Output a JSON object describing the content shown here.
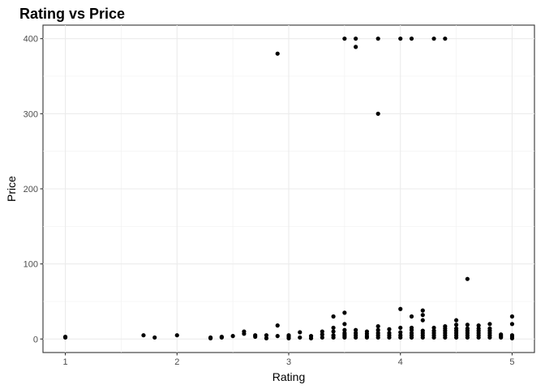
{
  "chart_data": {
    "type": "scatter",
    "title": "Rating vs Price",
    "xlabel": "Rating",
    "ylabel": "Price",
    "xlim": [
      0.8,
      5.2
    ],
    "ylim": [
      -18,
      418
    ],
    "x_ticks": [
      1,
      2,
      3,
      4,
      5
    ],
    "y_ticks": [
      0,
      100,
      200,
      300,
      400
    ],
    "grid": true,
    "legend": "none",
    "point_color": "#000000",
    "points": [
      [
        1.0,
        2
      ],
      [
        1.0,
        3
      ],
      [
        1.7,
        5
      ],
      [
        1.8,
        2
      ],
      [
        2.0,
        5
      ],
      [
        2.3,
        1
      ],
      [
        2.3,
        2
      ],
      [
        2.4,
        2
      ],
      [
        2.4,
        3
      ],
      [
        2.5,
        4
      ],
      [
        2.6,
        7
      ],
      [
        2.6,
        10
      ],
      [
        2.7,
        3
      ],
      [
        2.7,
        5
      ],
      [
        2.8,
        1
      ],
      [
        2.8,
        5
      ],
      [
        2.9,
        4
      ],
      [
        2.9,
        18
      ],
      [
        2.9,
        380
      ],
      [
        3.0,
        1
      ],
      [
        3.0,
        3
      ],
      [
        3.0,
        5
      ],
      [
        3.1,
        2
      ],
      [
        3.1,
        9
      ],
      [
        3.2,
        1
      ],
      [
        3.2,
        4
      ],
      [
        3.3,
        2
      ],
      [
        3.3,
        6
      ],
      [
        3.3,
        10
      ],
      [
        3.4,
        2
      ],
      [
        3.4,
        5
      ],
      [
        3.4,
        10
      ],
      [
        3.4,
        15
      ],
      [
        3.4,
        30
      ],
      [
        3.5,
        2
      ],
      [
        3.5,
        4
      ],
      [
        3.5,
        6
      ],
      [
        3.5,
        8
      ],
      [
        3.5,
        12
      ],
      [
        3.5,
        20
      ],
      [
        3.5,
        35
      ],
      [
        3.5,
        400
      ],
      [
        3.6,
        2
      ],
      [
        3.6,
        5
      ],
      [
        3.6,
        8
      ],
      [
        3.6,
        12
      ],
      [
        3.6,
        389
      ],
      [
        3.6,
        400
      ],
      [
        3.7,
        2
      ],
      [
        3.7,
        4
      ],
      [
        3.7,
        7
      ],
      [
        3.7,
        10
      ],
      [
        3.8,
        2
      ],
      [
        3.8,
        5
      ],
      [
        3.8,
        8
      ],
      [
        3.8,
        12
      ],
      [
        3.8,
        17
      ],
      [
        3.8,
        300
      ],
      [
        3.8,
        400
      ],
      [
        3.9,
        2
      ],
      [
        3.9,
        5
      ],
      [
        3.9,
        8
      ],
      [
        3.9,
        13
      ],
      [
        4.0,
        2
      ],
      [
        4.0,
        5
      ],
      [
        4.0,
        9
      ],
      [
        4.0,
        15
      ],
      [
        4.0,
        40
      ],
      [
        4.0,
        400
      ],
      [
        4.1,
        2
      ],
      [
        4.1,
        5
      ],
      [
        4.1,
        8
      ],
      [
        4.1,
        12
      ],
      [
        4.1,
        15
      ],
      [
        4.1,
        30
      ],
      [
        4.1,
        400
      ],
      [
        4.2,
        2
      ],
      [
        4.2,
        5
      ],
      [
        4.2,
        8
      ],
      [
        4.2,
        11
      ],
      [
        4.2,
        25
      ],
      [
        4.2,
        32
      ],
      [
        4.2,
        38
      ],
      [
        4.3,
        2
      ],
      [
        4.3,
        5
      ],
      [
        4.3,
        8
      ],
      [
        4.3,
        11
      ],
      [
        4.3,
        15
      ],
      [
        4.3,
        400
      ],
      [
        4.4,
        2
      ],
      [
        4.4,
        5
      ],
      [
        4.4,
        8
      ],
      [
        4.4,
        11
      ],
      [
        4.4,
        14
      ],
      [
        4.4,
        17
      ],
      [
        4.4,
        400
      ],
      [
        4.5,
        2
      ],
      [
        4.5,
        5
      ],
      [
        4.5,
        8
      ],
      [
        4.5,
        11
      ],
      [
        4.5,
        14
      ],
      [
        4.5,
        19
      ],
      [
        4.5,
        25
      ],
      [
        4.6,
        2
      ],
      [
        4.6,
        5
      ],
      [
        4.6,
        8
      ],
      [
        4.6,
        11
      ],
      [
        4.6,
        14
      ],
      [
        4.6,
        19
      ],
      [
        4.6,
        80
      ],
      [
        4.7,
        2
      ],
      [
        4.7,
        5
      ],
      [
        4.7,
        8
      ],
      [
        4.7,
        11
      ],
      [
        4.7,
        14
      ],
      [
        4.7,
        18
      ],
      [
        4.8,
        2
      ],
      [
        4.8,
        5
      ],
      [
        4.8,
        8
      ],
      [
        4.8,
        11
      ],
      [
        4.8,
        14
      ],
      [
        4.8,
        20
      ],
      [
        4.9,
        2
      ],
      [
        4.9,
        4
      ],
      [
        4.9,
        6
      ],
      [
        5.0,
        1
      ],
      [
        5.0,
        3
      ],
      [
        5.0,
        5
      ],
      [
        5.0,
        20
      ],
      [
        5.0,
        30
      ]
    ]
  }
}
